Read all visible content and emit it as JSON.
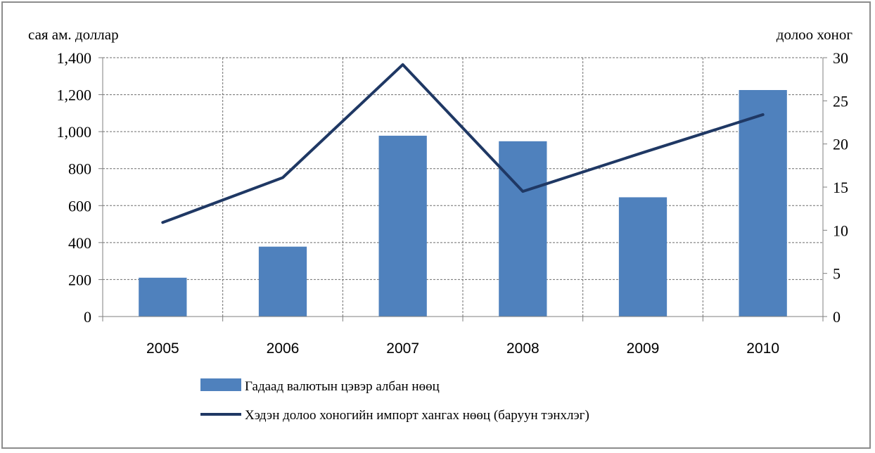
{
  "chart_data": {
    "type": "bar",
    "categories": [
      "2005",
      "2006",
      "2007",
      "2008",
      "2009",
      "2010"
    ],
    "series": [
      {
        "name": "Гадаад валютын цэвэр албан нөөц",
        "type": "bar",
        "axis": "left",
        "color": "#4f81bd",
        "values": [
          210,
          378,
          978,
          948,
          645,
          1225
        ]
      },
      {
        "name": "Хэдэн долоо хоногийн импорт хангах нөөц (баруун тэнхлэг)",
        "type": "line",
        "axis": "right",
        "color": "#1f3864",
        "values": [
          10.9,
          16.1,
          29.2,
          14.5,
          19.0,
          23.4
        ]
      }
    ],
    "ylabel_left": "сая ам. доллар",
    "ylabel_right": "долоо хоног",
    "ylim_left": [
      0,
      1400
    ],
    "yticks_left": [
      "0",
      "200",
      "400",
      "600",
      "800",
      "1,000",
      "1,200",
      "1,400"
    ],
    "ylim_right": [
      0,
      30
    ],
    "yticks_right": [
      "0",
      "5",
      "10",
      "15",
      "20",
      "25",
      "30"
    ],
    "grid": true,
    "legend_position": "bottom-left"
  }
}
